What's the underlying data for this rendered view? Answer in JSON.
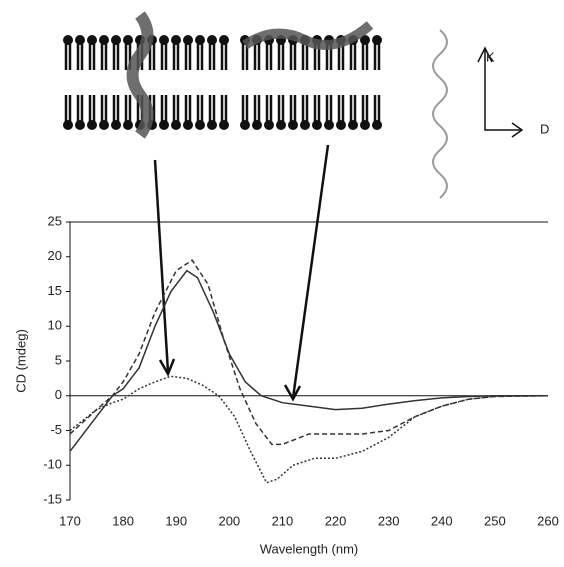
{
  "chart_data": {
    "type": "line",
    "xlabel": "Wavelength (nm)",
    "ylabel": "CD (mdeg)",
    "annotations": [
      "K",
      "D"
    ],
    "xlim": [
      170,
      260
    ],
    "xticks": [
      170,
      180,
      190,
      200,
      210,
      220,
      230,
      240,
      250,
      260
    ],
    "ylim": [
      -15,
      25
    ],
    "yticks": [
      -15,
      -10,
      -5,
      0,
      5,
      10,
      15,
      20,
      25
    ],
    "series": [
      {
        "color": "#333333",
        "style": "solid",
        "x": [
          170,
          175,
          178,
          180,
          183,
          186,
          189,
          192,
          194,
          197,
          200,
          203,
          206,
          210,
          215,
          220,
          225,
          230,
          235,
          240,
          245,
          250,
          260
        ],
        "values": [
          -8,
          -3,
          0,
          1,
          4,
          10,
          15,
          18,
          17,
          12,
          6,
          2,
          0,
          -1,
          -1.5,
          -2,
          -1.8,
          -1.2,
          -0.7,
          -0.3,
          -0.1,
          0,
          0
        ]
      },
      {
        "color": "#333333",
        "style": "dashed",
        "x": [
          170,
          175,
          178,
          180,
          183,
          186,
          190,
          193,
          196,
          199,
          202,
          205,
          208,
          210,
          215,
          220,
          225,
          230,
          235,
          240,
          245,
          250,
          260
        ],
        "values": [
          -5.5,
          -2,
          0,
          2,
          6,
          12,
          18,
          19.5,
          16,
          8,
          1,
          -4,
          -7,
          -7,
          -5.5,
          -5.5,
          -5.5,
          -5,
          -3,
          -1.5,
          -0.5,
          -0.1,
          0
        ]
      },
      {
        "color": "#333333",
        "style": "dotted",
        "x": [
          170,
          175,
          178,
          180,
          183,
          186,
          189,
          192,
          195,
          198,
          201,
          204,
          207,
          209,
          212,
          216,
          220,
          225,
          230,
          235,
          240,
          245,
          250,
          260
        ],
        "values": [
          -5,
          -2,
          -1,
          -0.5,
          1,
          2,
          2.8,
          2.5,
          1.5,
          0,
          -3,
          -8,
          -12.5,
          -12,
          -10,
          -9,
          -9,
          -8,
          -6,
          -3,
          -1.5,
          -0.5,
          -0.1,
          0
        ]
      }
    ]
  }
}
